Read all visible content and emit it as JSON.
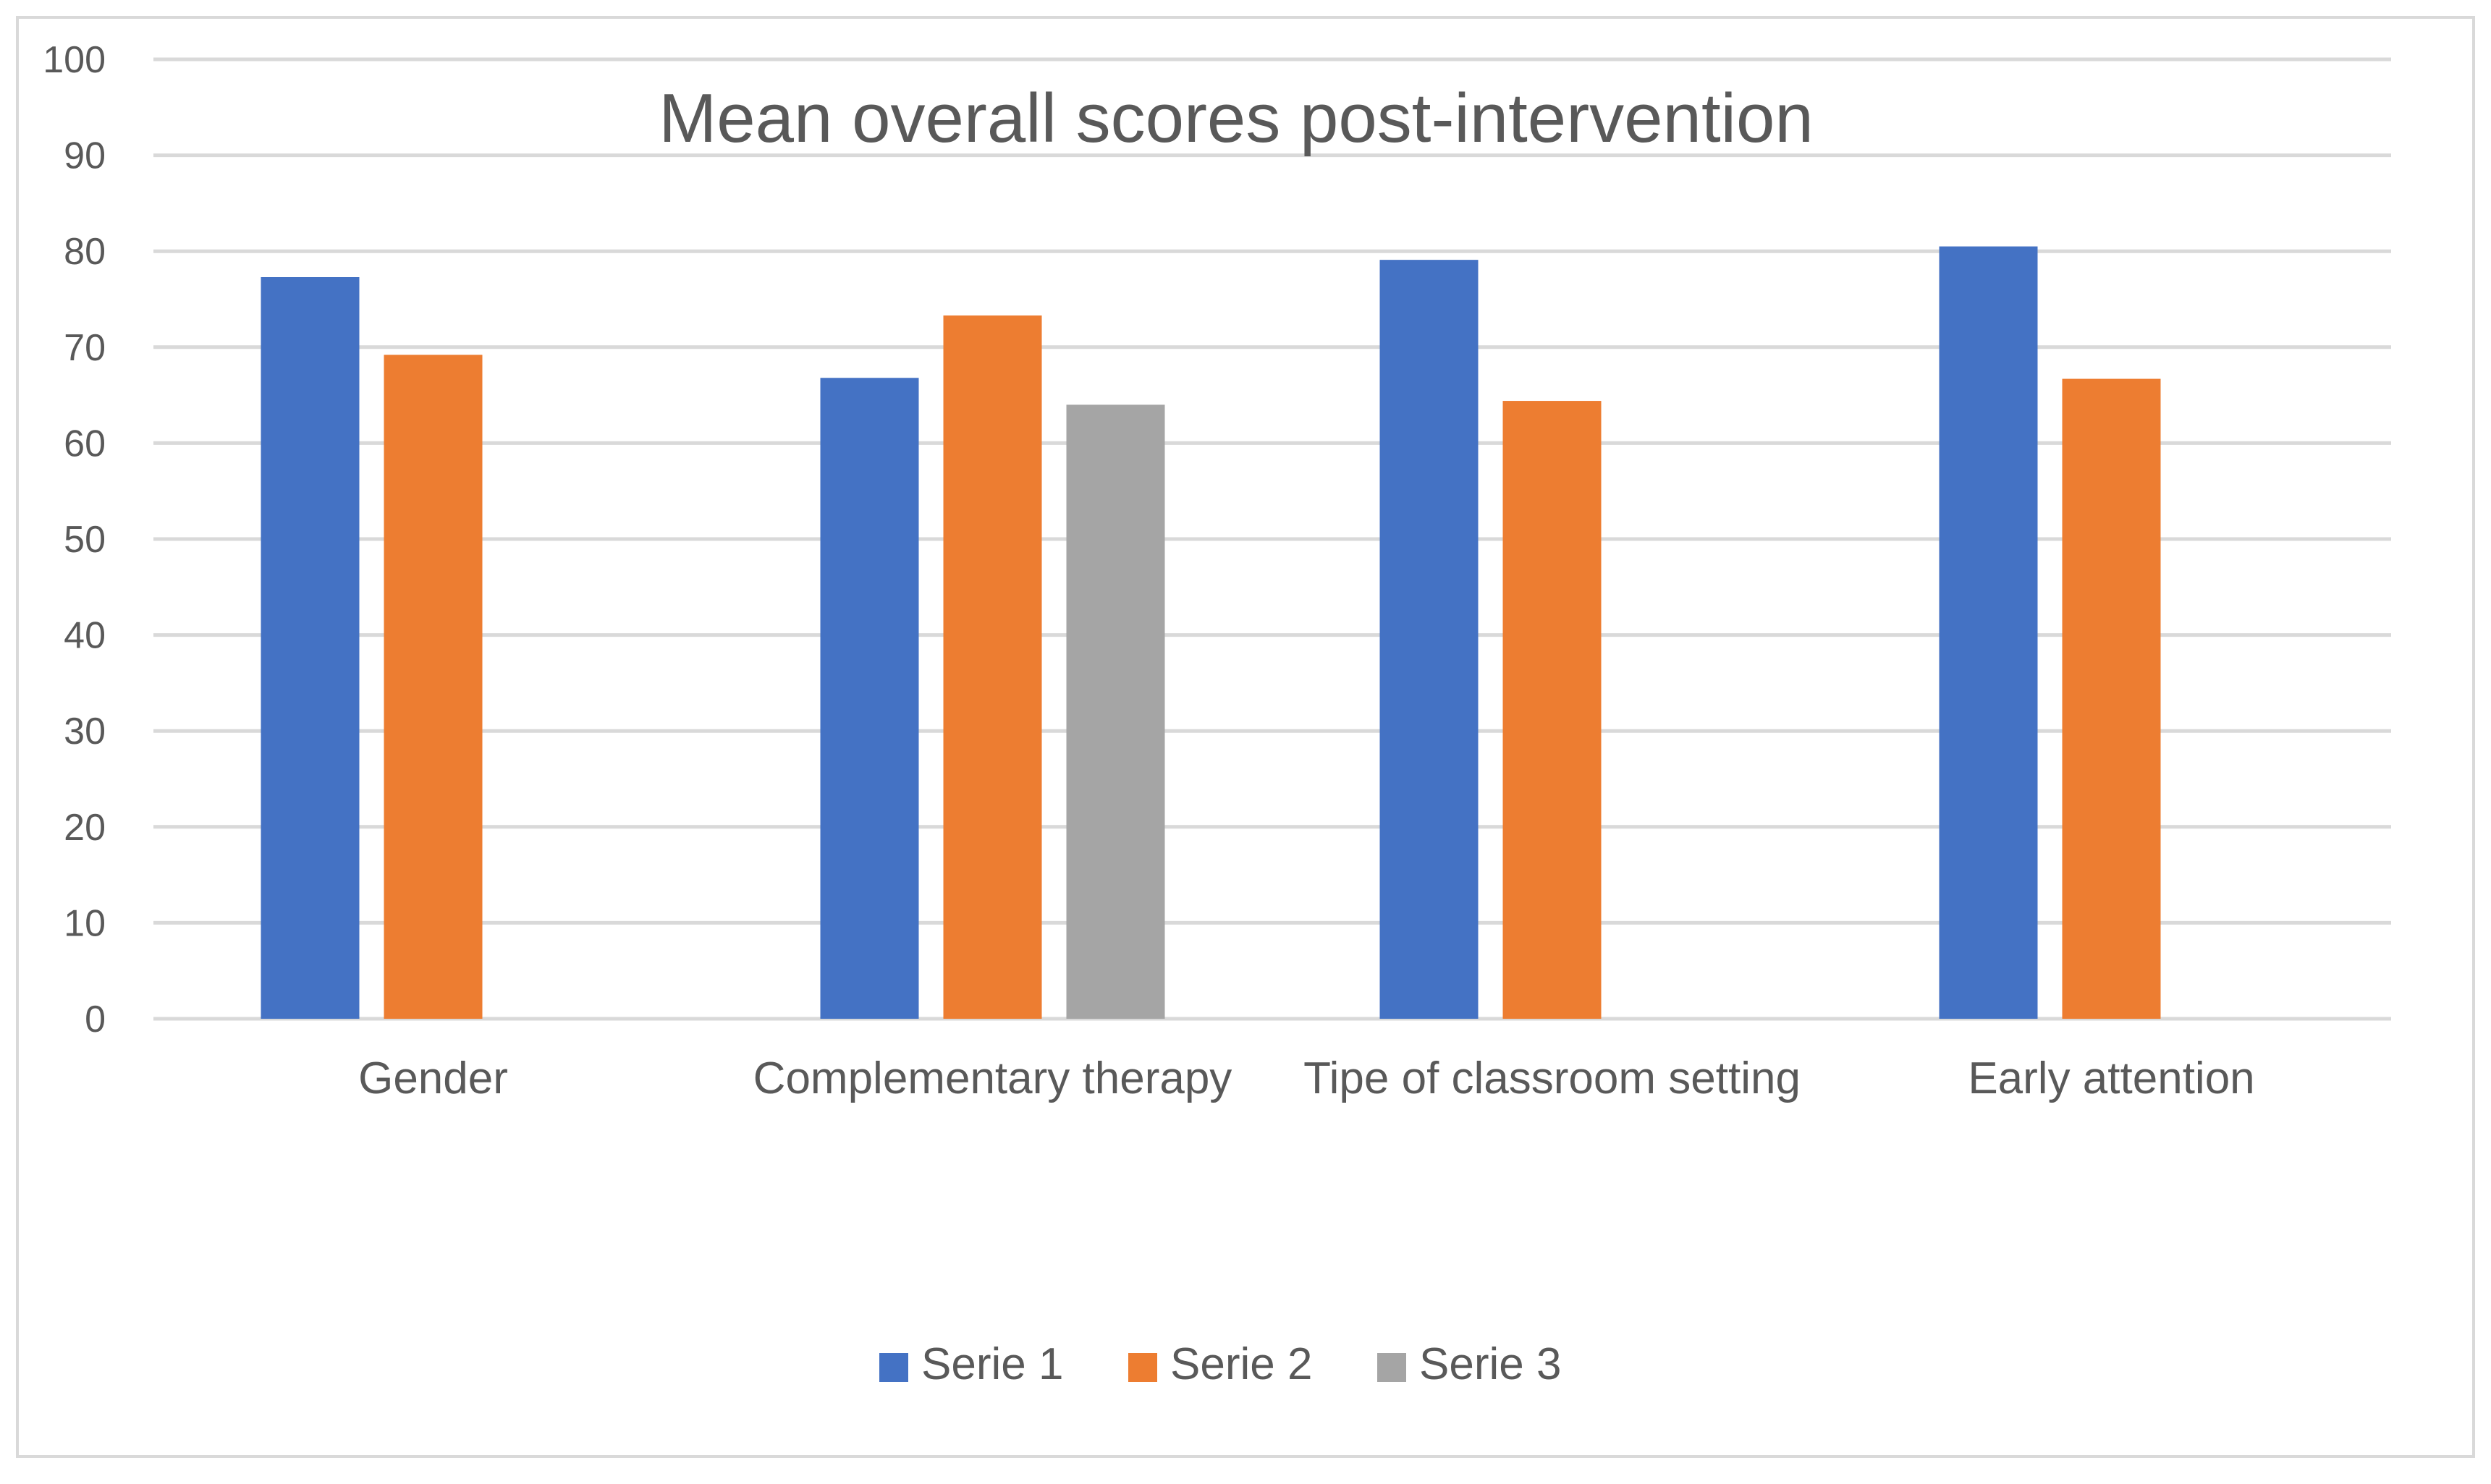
{
  "chart_data": {
    "type": "bar",
    "title": "Mean overall scores post-intervention",
    "xlabel": "",
    "ylabel": "",
    "categories": [
      "Gender",
      "Complementary therapy",
      "Tipe of classroom setting",
      "Early attention"
    ],
    "series": [
      {
        "name": "Serie 1",
        "color": "#4472c4",
        "values": [
          77.3,
          66.8,
          79.1,
          80.5
        ]
      },
      {
        "name": "Serie 2",
        "color": "#ed7d31",
        "values": [
          69.2,
          73.3,
          64.4,
          66.7
        ]
      },
      {
        "name": "Serie 3",
        "color": "#a5a5a5",
        "values": [
          null,
          64.0,
          null,
          null
        ]
      }
    ],
    "ylim": [
      0,
      100
    ],
    "yticks": [
      0,
      10,
      20,
      30,
      40,
      50,
      60,
      70,
      80,
      90,
      100
    ],
    "grid": true,
    "legend_position": "bottom"
  }
}
